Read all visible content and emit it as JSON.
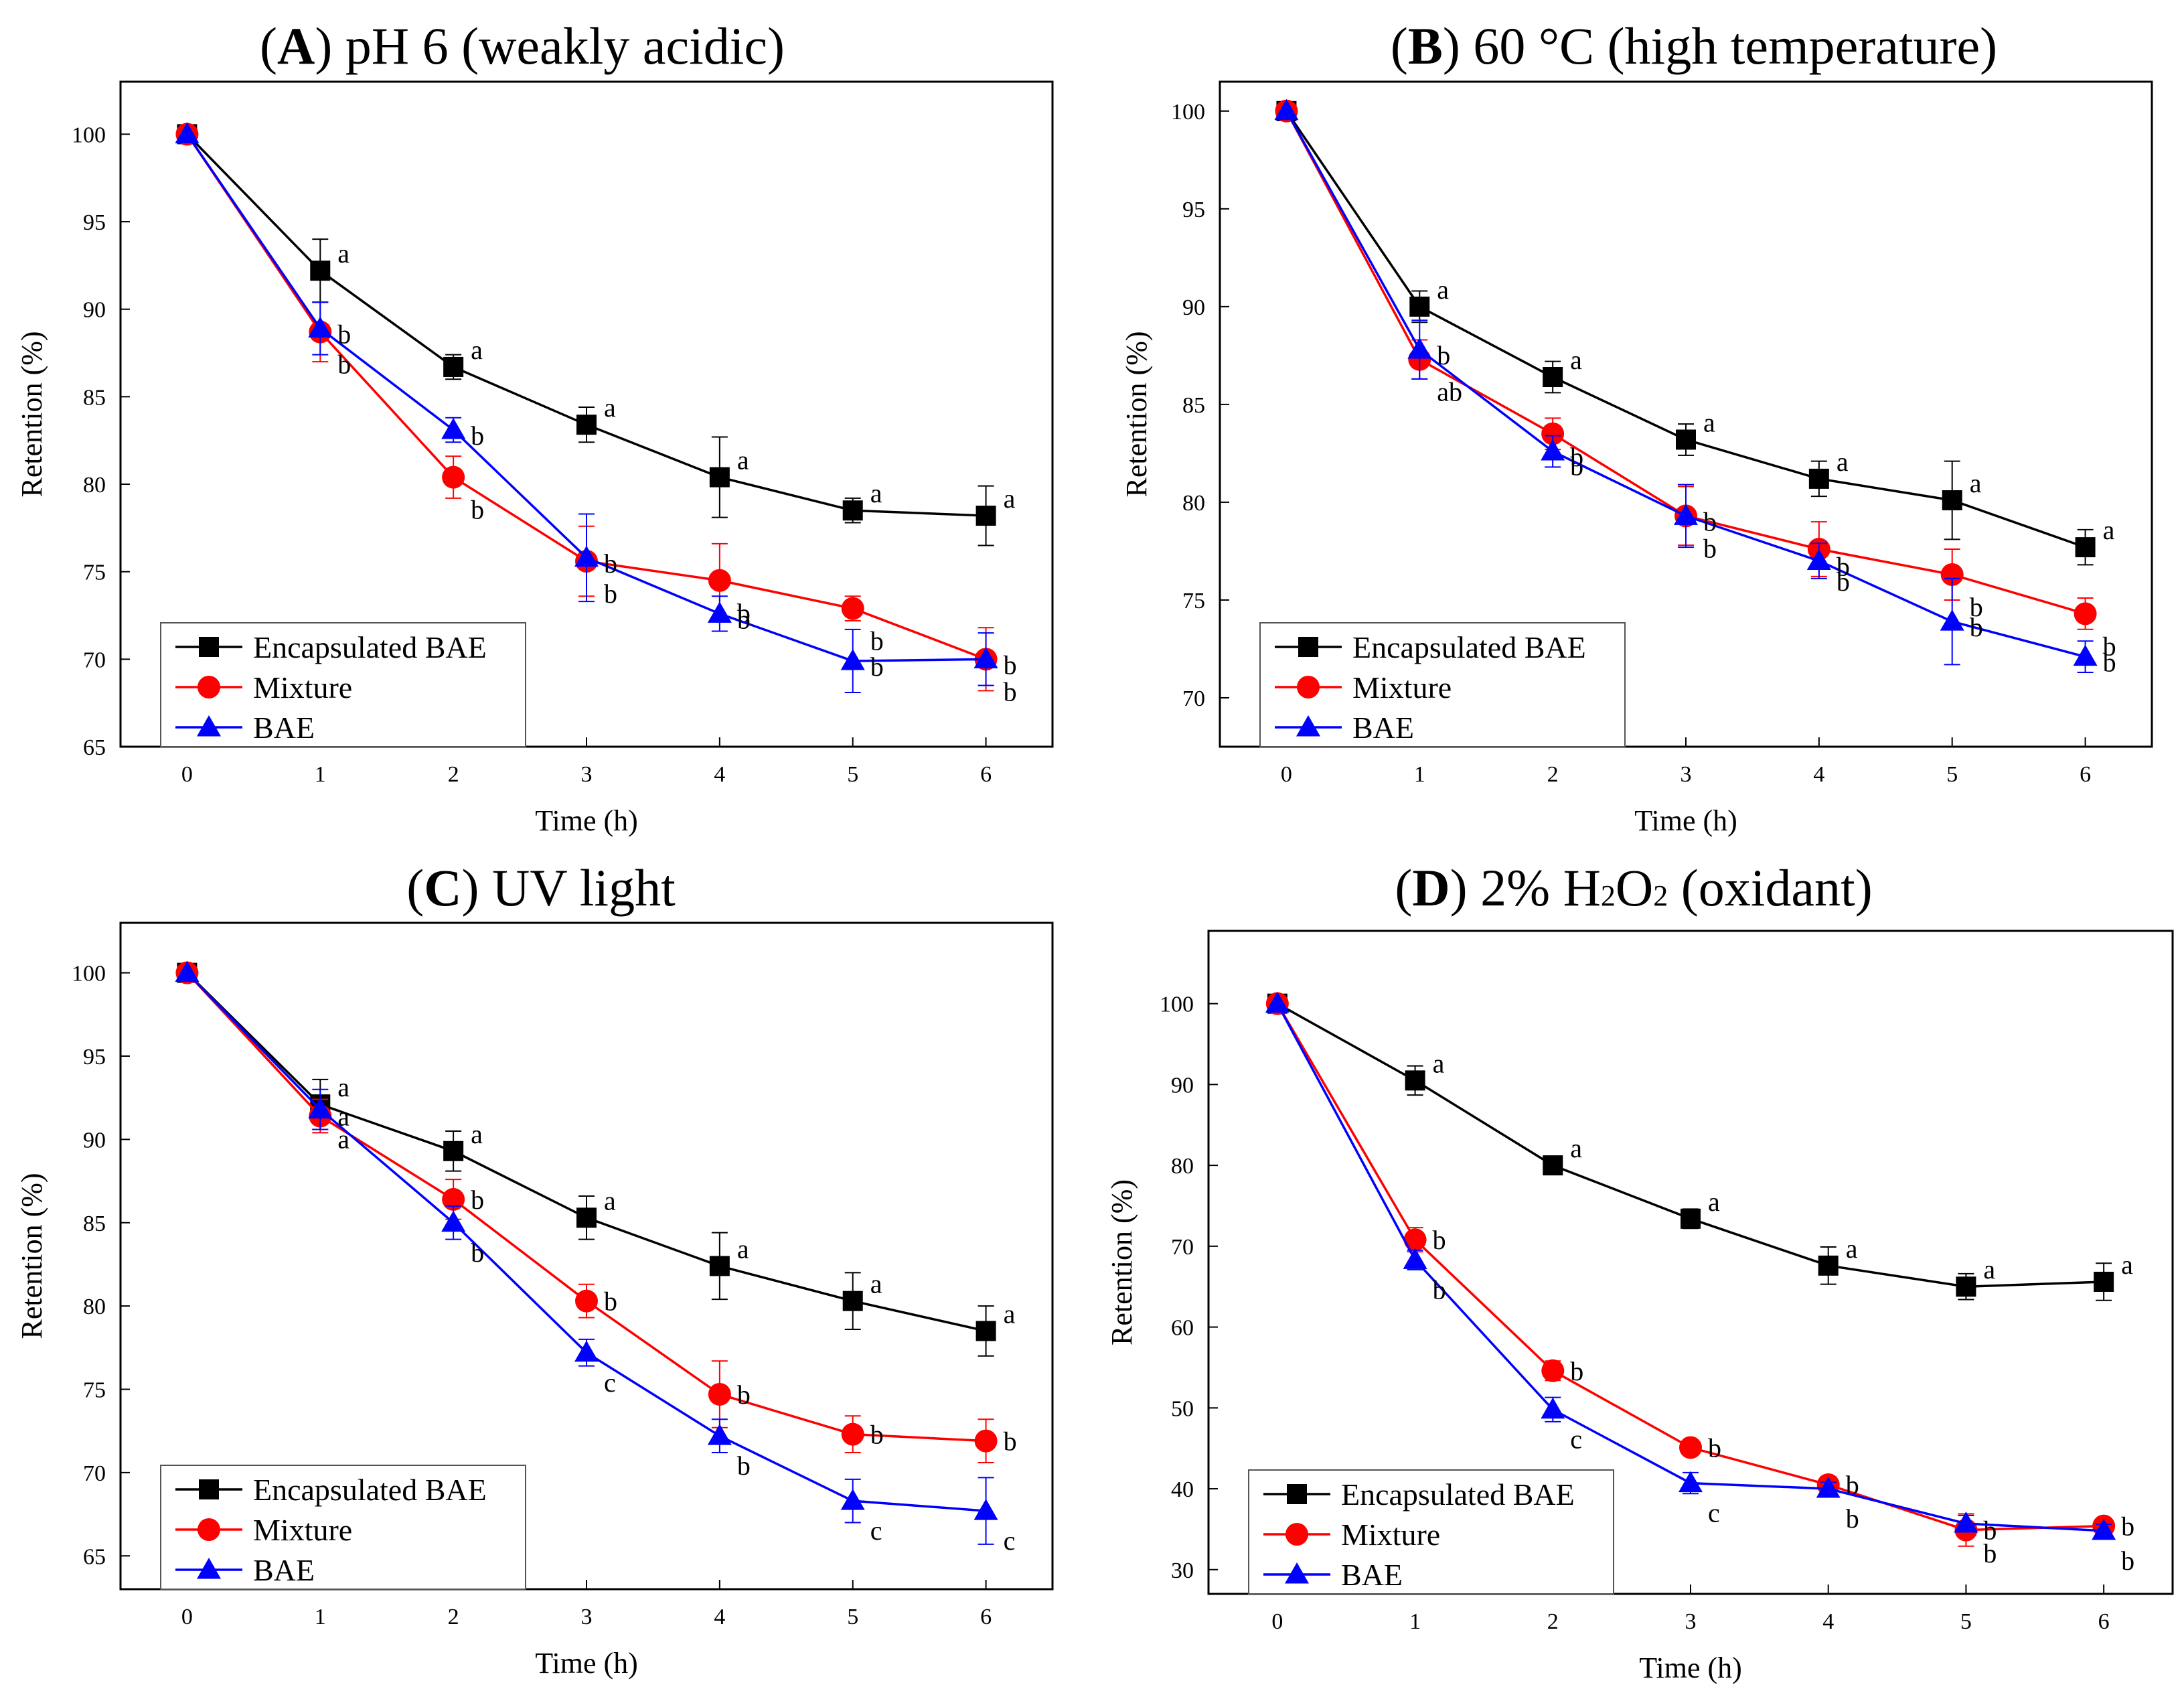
{
  "figure": {
    "colors": {
      "encapsulated": "#000000",
      "mixture": "#ff0000",
      "bae": "#0000ff"
    },
    "x_label": "Time (h)",
    "y_label": "Retention (%)"
  },
  "chart_data": [
    {
      "type": "line",
      "title_letter": "A",
      "title_rest": ") pH 6 (weakly acidic)",
      "xlabel": "Time (h)",
      "ylabel": "Retention (%)",
      "x": [
        0,
        1,
        2,
        3,
        4,
        5,
        6
      ],
      "xlim": [
        -0.5,
        6.5
      ],
      "ylim": [
        65,
        103
      ],
      "yticks": [
        65,
        70,
        75,
        80,
        85,
        90,
        95,
        100
      ],
      "legend_position": "bottom-left",
      "series": [
        {
          "name": "Encapsulated BAE",
          "marker": "square",
          "color": "#000000",
          "values": [
            100,
            92.2,
            86.7,
            83.4,
            80.4,
            78.5,
            78.2
          ],
          "errors": [
            0,
            1.8,
            0.7,
            1.0,
            2.3,
            0.7,
            1.7
          ],
          "letters": [
            "",
            "a",
            "a",
            "a",
            "a",
            "a",
            "a"
          ]
        },
        {
          "name": "Mixture",
          "marker": "circle",
          "color": "#ff0000",
          "values": [
            100,
            88.7,
            80.4,
            75.6,
            74.5,
            72.9,
            70.0
          ],
          "errors": [
            0,
            1.7,
            1.2,
            2.0,
            2.1,
            0.7,
            1.8
          ],
          "letters": [
            "",
            "b",
            "b",
            "b",
            "b",
            "b",
            "b"
          ]
        },
        {
          "name": "BAE",
          "marker": "triangle",
          "color": "#0000ff",
          "values": [
            100,
            88.9,
            83.1,
            75.8,
            72.6,
            69.9,
            70.0
          ],
          "errors": [
            0,
            1.5,
            0.7,
            2.5,
            1.0,
            1.8,
            1.5
          ],
          "letters": [
            "",
            "b",
            "b",
            "b",
            "b",
            "b",
            "b"
          ]
        }
      ]
    },
    {
      "type": "line",
      "title_letter": "B",
      "title_rest": ") 60 °C (high temperature)",
      "xlabel": "Time (h)",
      "ylabel": "Retention (%)",
      "x": [
        0,
        1,
        2,
        3,
        4,
        5,
        6
      ],
      "xlim": [
        -0.5,
        6.5
      ],
      "ylim": [
        67.5,
        101.5
      ],
      "yticks": [
        70,
        75,
        80,
        85,
        90,
        95,
        100
      ],
      "legend_position": "bottom-left",
      "series": [
        {
          "name": "Encapsulated BAE",
          "marker": "square",
          "color": "#000000",
          "values": [
            100,
            90.0,
            86.4,
            83.2,
            81.2,
            80.1,
            77.7
          ],
          "errors": [
            0,
            0.8,
            0.8,
            0.8,
            0.9,
            2.0,
            0.9
          ],
          "letters": [
            "",
            "a",
            "a",
            "a",
            "a",
            "a",
            "a"
          ]
        },
        {
          "name": "Mixture",
          "marker": "circle",
          "color": "#ff0000",
          "values": [
            100,
            87.3,
            83.5,
            79.3,
            77.6,
            76.3,
            74.3
          ],
          "errors": [
            0,
            1.0,
            0.8,
            1.5,
            1.4,
            1.3,
            0.8
          ],
          "letters": [
            "",
            "ab",
            "b",
            "b",
            "b",
            "b",
            "b"
          ]
        },
        {
          "name": "BAE",
          "marker": "triangle",
          "color": "#0000ff",
          "values": [
            100,
            87.8,
            82.6,
            79.3,
            77.0,
            73.9,
            72.1
          ],
          "errors": [
            0,
            1.5,
            0.8,
            1.6,
            0.9,
            2.2,
            0.8
          ],
          "letters": [
            "",
            "b",
            "b",
            "b",
            "b",
            "b",
            "b"
          ]
        }
      ]
    },
    {
      "type": "line",
      "title_letter": "C",
      "title_rest": ") UV light",
      "xlabel": "Time (h)",
      "ylabel": "Retention (%)",
      "x": [
        0,
        1,
        2,
        3,
        4,
        5,
        6
      ],
      "xlim": [
        -0.5,
        6.5
      ],
      "ylim": [
        63,
        103
      ],
      "yticks": [
        65,
        70,
        75,
        80,
        85,
        90,
        95,
        100
      ],
      "legend_position": "bottom-left",
      "series": [
        {
          "name": "Encapsulated BAE",
          "marker": "square",
          "color": "#000000",
          "values": [
            100,
            92.1,
            89.3,
            85.3,
            82.4,
            80.3,
            78.5
          ],
          "errors": [
            0,
            1.5,
            1.2,
            1.3,
            2.0,
            1.7,
            1.5
          ],
          "letters": [
            "",
            "a",
            "a",
            "a",
            "a",
            "a",
            "a"
          ]
        },
        {
          "name": "Mixture",
          "marker": "circle",
          "color": "#ff0000",
          "values": [
            100,
            91.4,
            86.4,
            80.3,
            74.7,
            72.3,
            71.9
          ],
          "errors": [
            0,
            1.0,
            1.2,
            1.0,
            2.0,
            1.1,
            1.3
          ],
          "letters": [
            "",
            "a",
            "b",
            "b",
            "b",
            "b",
            "b"
          ]
        },
        {
          "name": "BAE",
          "marker": "triangle",
          "color": "#0000ff",
          "values": [
            100,
            91.8,
            85.0,
            77.2,
            72.2,
            68.3,
            67.7
          ],
          "errors": [
            0,
            1.2,
            1.0,
            0.8,
            1.0,
            1.3,
            2.0
          ],
          "letters": [
            "",
            "a",
            "b",
            "c",
            "b",
            "c",
            "c"
          ]
        }
      ]
    },
    {
      "type": "line",
      "title_letter": "D",
      "title_rest": ") 2% H",
      "title_sub1": "2",
      "title_mid": "O",
      "title_sub2": "2",
      "title_end": " (oxidant)",
      "xlabel": "Time (h)",
      "ylabel": "Retention (%)",
      "x": [
        0,
        1,
        2,
        3,
        4,
        5,
        6
      ],
      "xlim": [
        -0.5,
        6.5
      ],
      "ylim": [
        27,
        109
      ],
      "yticks": [
        30,
        40,
        50,
        60,
        70,
        80,
        90,
        100
      ],
      "legend_position": "bottom-left",
      "series": [
        {
          "name": "Encapsulated BAE",
          "marker": "square",
          "color": "#000000",
          "values": [
            100,
            90.5,
            80.0,
            73.4,
            67.6,
            65.0,
            65.6
          ],
          "errors": [
            0,
            1.8,
            0.8,
            1.2,
            2.3,
            1.6,
            2.3
          ],
          "letters": [
            "",
            "a",
            "a",
            "a",
            "a",
            "a",
            "a"
          ]
        },
        {
          "name": "Mixture",
          "marker": "circle",
          "color": "#ff0000",
          "values": [
            100,
            70.8,
            54.6,
            45.1,
            40.5,
            34.9,
            35.4
          ],
          "errors": [
            0,
            1.5,
            1.2,
            0.8,
            1.0,
            2.0,
            0.8
          ],
          "letters": [
            "",
            "b",
            "b",
            "b",
            "b",
            "b",
            "b"
          ]
        },
        {
          "name": "BAE",
          "marker": "triangle",
          "color": "#0000ff",
          "values": [
            100,
            68.3,
            49.8,
            40.7,
            40.0,
            35.7,
            34.8
          ],
          "errors": [
            0,
            1.2,
            1.5,
            1.3,
            0.8,
            1.0,
            0.8
          ],
          "letters": [
            "",
            "b",
            "c",
            "c",
            "b",
            "b",
            "b"
          ]
        }
      ]
    }
  ]
}
